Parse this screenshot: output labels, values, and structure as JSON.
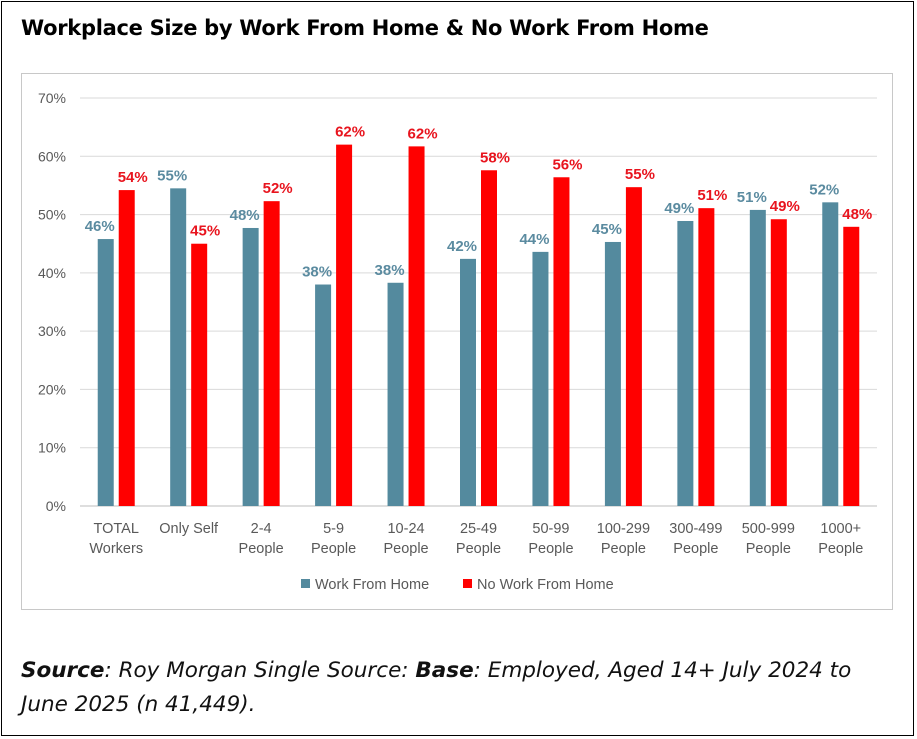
{
  "title": "Workplace Size by Work From Home & No Work From Home",
  "chart_data": {
    "type": "bar",
    "title": "Workplace Size by Work From Home & No Work From Home",
    "xlabel": "",
    "ylabel": "",
    "ylim": [
      0,
      70
    ],
    "yticks": [
      "0%",
      "10%",
      "20%",
      "30%",
      "40%",
      "50%",
      "60%",
      "70%"
    ],
    "ytick_values": [
      0,
      10,
      20,
      30,
      40,
      50,
      60,
      70
    ],
    "categories": [
      [
        "TOTAL",
        "Workers"
      ],
      [
        "Only Self",
        ""
      ],
      [
        "2-4",
        "People"
      ],
      [
        "5-9",
        "People"
      ],
      [
        "10-24",
        "People"
      ],
      [
        "25-49",
        "People"
      ],
      [
        "50-99",
        "People"
      ],
      [
        "100-299",
        "People"
      ],
      [
        "300-499",
        "People"
      ],
      [
        "500-999",
        "People"
      ],
      [
        "1000+",
        "People"
      ]
    ],
    "series": [
      {
        "name": "Work From Home",
        "color": "#548A9E",
        "label_color": "#5B8BA0",
        "values": [
          45.8,
          54.5,
          47.7,
          38.0,
          38.3,
          42.4,
          43.6,
          45.3,
          48.9,
          50.8,
          52.1
        ],
        "labels": [
          "46%",
          "55%",
          "48%",
          "38%",
          "38%",
          "42%",
          "44%",
          "45%",
          "49%",
          "51%",
          "52%"
        ]
      },
      {
        "name": "No Work From Home",
        "color": "#FF0000",
        "label_color": "#E8141E",
        "values": [
          54.2,
          45.0,
          52.3,
          62.0,
          61.7,
          57.6,
          56.4,
          54.7,
          51.1,
          49.2,
          47.9
        ],
        "labels": [
          "54%",
          "45%",
          "52%",
          "62%",
          "62%",
          "58%",
          "56%",
          "55%",
          "51%",
          "49%",
          "48%"
        ]
      }
    ],
    "legend": "bottom-center",
    "grid": true
  },
  "source": {
    "source_label": "Source",
    "source_text": ": Roy Morgan Single Source: ",
    "base_label": "Base",
    "base_text": ": Employed, Aged 14+ July 2024 to June 2025 (n 41,449)."
  }
}
